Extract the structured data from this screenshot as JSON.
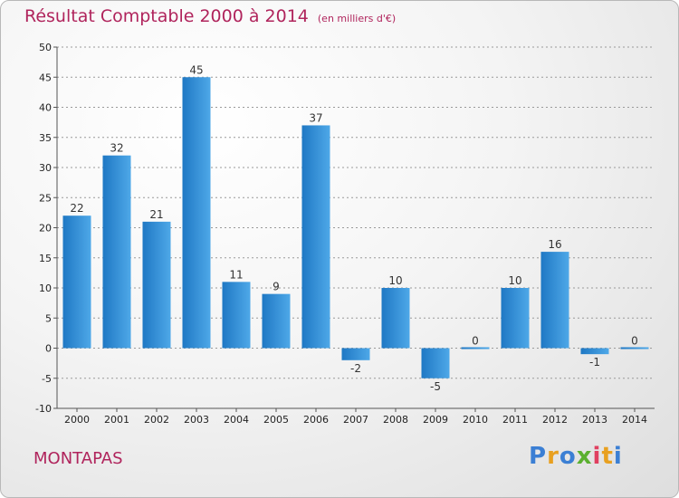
{
  "title": "Résultat Comptable 2000 à 2014",
  "subtitle": "(en milliers d'€)",
  "commune": "MONTAPAS",
  "logo": {
    "letters": [
      "P",
      "r",
      "o",
      "x",
      "i",
      "t",
      "i"
    ],
    "colors": [
      "#3b7fd4",
      "#e8a020",
      "#3b7fd4",
      "#5bb030",
      "#e04060",
      "#e8a020",
      "#3b7fd4"
    ]
  },
  "colors": {
    "bar": "#2f8fd8",
    "bar_light": "#5fb3ec",
    "title": "#b0245c"
  },
  "chart_data": {
    "type": "bar",
    "categories": [
      "2000",
      "2001",
      "2002",
      "2003",
      "2004",
      "2005",
      "2006",
      "2007",
      "2008",
      "2009",
      "2010",
      "2011",
      "2012",
      "2013",
      "2014"
    ],
    "values": [
      22,
      32,
      21,
      45,
      11,
      9,
      37,
      -2,
      10,
      -5,
      0,
      10,
      16,
      -1,
      0
    ],
    "data_labels": [
      "22",
      "32",
      "21",
      "45",
      "11",
      "9",
      "37",
      "-2",
      "10",
      "-5",
      "0",
      "10",
      "16",
      "-1",
      "0"
    ],
    "ylim": [
      -10,
      50
    ],
    "yticks": [
      -10,
      -5,
      0,
      5,
      10,
      15,
      20,
      25,
      30,
      35,
      40,
      45,
      50
    ],
    "ytick_labels": [
      "-10",
      "-5",
      "0",
      "5",
      "10",
      "15",
      "20",
      "25",
      "30",
      "35",
      "40",
      "45",
      "50"
    ],
    "grid": true,
    "xlabel": "",
    "ylabel": ""
  }
}
